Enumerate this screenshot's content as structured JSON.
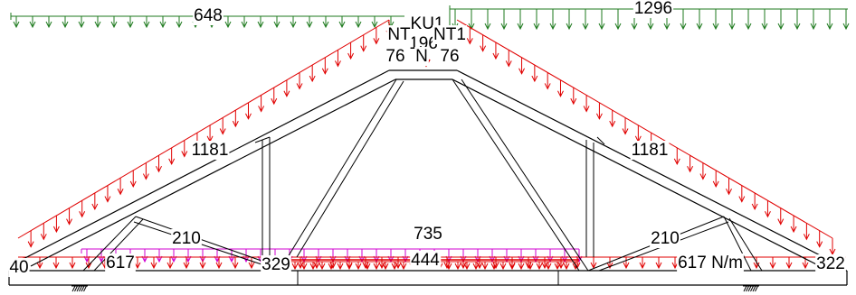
{
  "load_labels": {
    "top_left_green": "648",
    "top_right_green": "1296",
    "left_slope": "1181",
    "right_slope": "1181",
    "left_web_load": "210",
    "right_web_load": "210",
    "bottom_magenta": "735",
    "bottom_center": "444",
    "bottom_left_chord": "617",
    "bottom_right_chord": "617 N/m",
    "bottom_left_end": "40",
    "bottom_right_end": "322",
    "bottom_mid_left": "329",
    "apex_point": "196",
    "apex_left": "76",
    "apex_right": "76"
  },
  "member_labels": {
    "apex_top": "KU1",
    "top_chord_left": "NT",
    "top_chord_right": "NT1",
    "apex_node": "N"
  },
  "colors": {
    "dead_load": "#1e7a1e",
    "roof_load": "#e00000",
    "ceiling_load": "#d000d0",
    "structure": "#000000"
  }
}
